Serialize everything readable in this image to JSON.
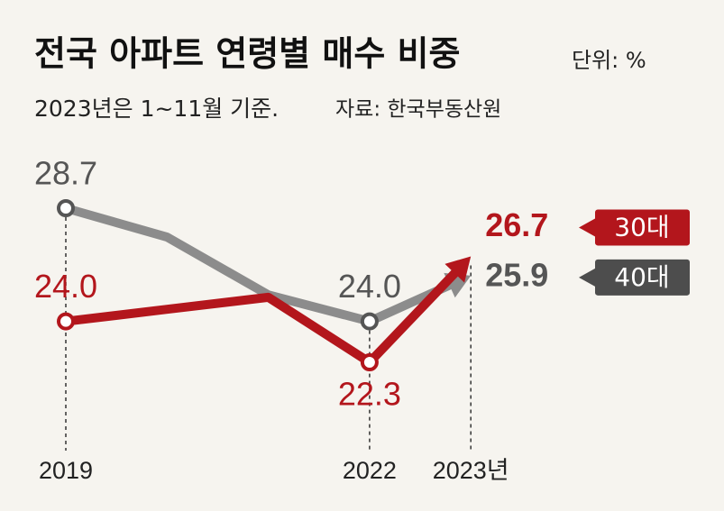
{
  "chart_data": {
    "type": "line",
    "title": "전국 아파트 연령별 매수 비중",
    "unit": "단위: %",
    "subtitle": "2023년은 1~11월 기준.",
    "source": "자료: 한국부동산원",
    "categories": [
      "2019",
      null,
      null,
      "2022",
      "2023년"
    ],
    "series": [
      {
        "name": "40대",
        "color": "#8c8c8c",
        "label_color": "#555555",
        "tag_color": "#4d4d4d",
        "values": [
          28.7,
          27.5,
          25.1,
          24.0,
          25.9
        ],
        "value_labels": [
          "28.7",
          null,
          null,
          "24.0",
          "25.9"
        ]
      },
      {
        "name": "30대",
        "color": "#b3161c",
        "label_color": "#b3161c",
        "tag_color": "#b3161c",
        "values": [
          24.0,
          24.5,
          25.0,
          22.3,
          26.7
        ],
        "value_labels": [
          "24.0",
          null,
          null,
          "22.3",
          "26.7"
        ]
      }
    ]
  }
}
